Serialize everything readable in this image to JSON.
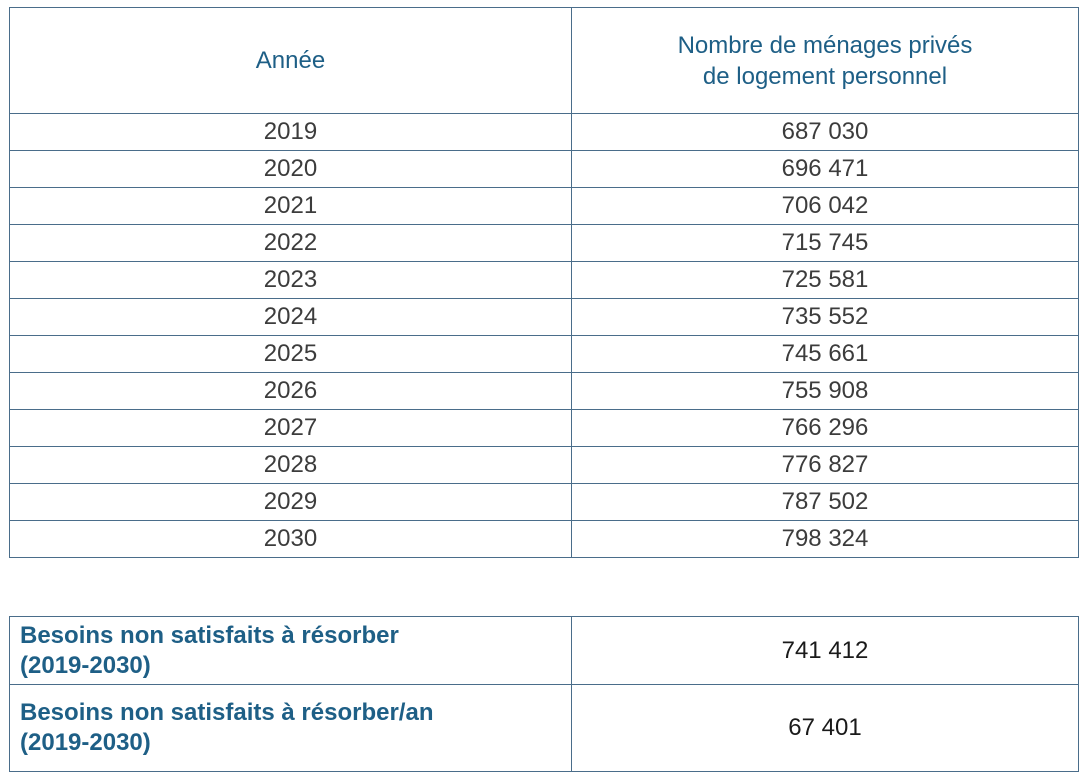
{
  "table": {
    "headers": {
      "year": "Année",
      "households_line1": "Nombre de ménages privés",
      "households_line2": "de logement personnel"
    },
    "rows": [
      {
        "year": "2019",
        "value": "687 030"
      },
      {
        "year": "2020",
        "value": "696 471"
      },
      {
        "year": "2021",
        "value": "706 042"
      },
      {
        "year": "2022",
        "value": "715 745"
      },
      {
        "year": "2023",
        "value": "725 581"
      },
      {
        "year": "2024",
        "value": "735 552"
      },
      {
        "year": "2025",
        "value": "745 661"
      },
      {
        "year": "2026",
        "value": "755 908"
      },
      {
        "year": "2027",
        "value": "766 296"
      },
      {
        "year": "2028",
        "value": "776 827"
      },
      {
        "year": "2029",
        "value": "787 502"
      },
      {
        "year": "2030",
        "value": "798 324"
      }
    ]
  },
  "summary": [
    {
      "label_line1": "Besoins non satisfaits à résorber",
      "label_line2": "(2019-2030)",
      "value": "741 412"
    },
    {
      "label_line1": "Besoins non satisfaits à résorber/an",
      "label_line2": "(2019-2030)",
      "value": "67 401"
    }
  ],
  "colors": {
    "header_text": "#1e5f86",
    "border": "#4a6d8a",
    "body_text": "#3c3c3c"
  }
}
